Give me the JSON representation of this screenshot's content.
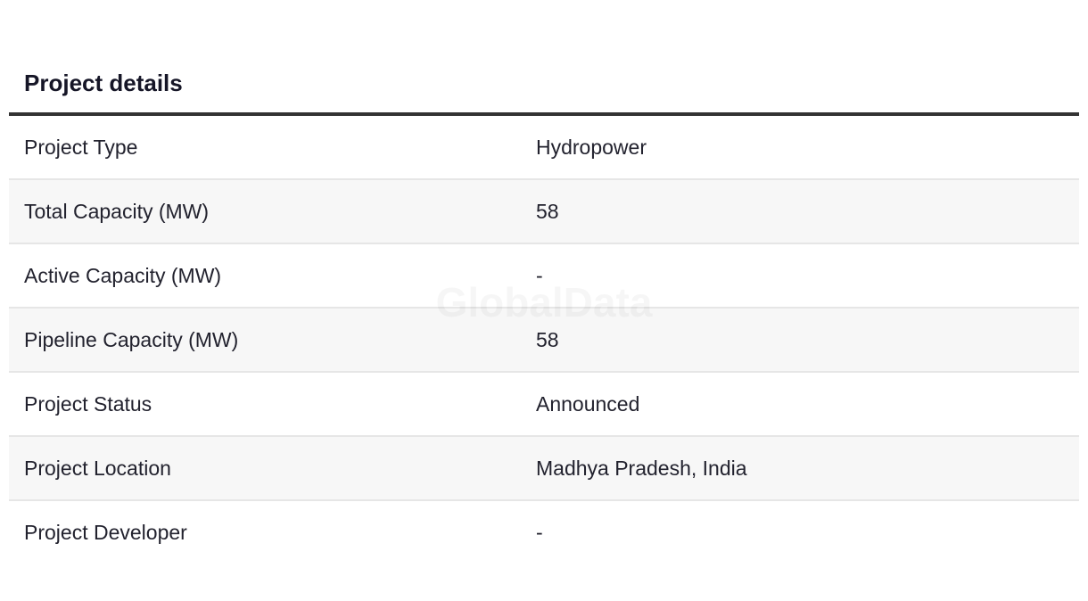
{
  "title": "Project details",
  "watermark": "GlobalData",
  "rows": [
    {
      "label": "Project Type",
      "value": "Hydropower"
    },
    {
      "label": "Total Capacity (MW)",
      "value": "58"
    },
    {
      "label": "Active Capacity (MW)",
      "value": "-"
    },
    {
      "label": "Pipeline Capacity (MW)",
      "value": "58"
    },
    {
      "label": "Project Status",
      "value": "Announced"
    },
    {
      "label": "Project Location",
      "value": "Madhya Pradesh, India"
    },
    {
      "label": "Project Developer",
      "value": "-"
    }
  ]
}
